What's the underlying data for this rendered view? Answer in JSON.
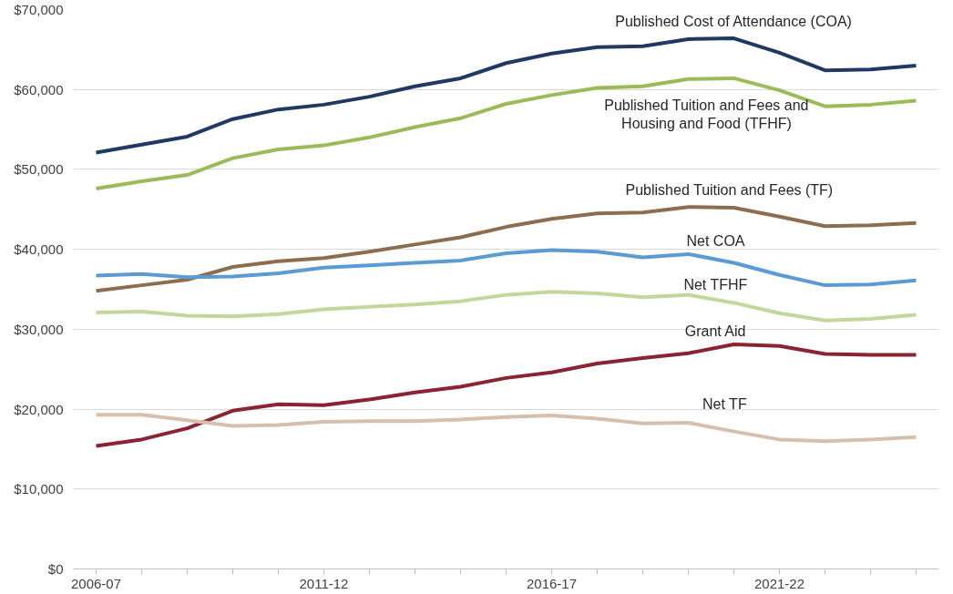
{
  "chart_data": {
    "type": "line",
    "categories": [
      "2006-07",
      null,
      null,
      null,
      null,
      "2011-12",
      null,
      null,
      null,
      null,
      "2016-17",
      null,
      null,
      null,
      null,
      "2021-22",
      null,
      null,
      null
    ],
    "ylim": [
      0,
      70000
    ],
    "yticks": [
      {
        "value": 0,
        "label": "$0"
      },
      {
        "value": 10000,
        "label": "$10,000"
      },
      {
        "value": 20000,
        "label": "$20,000"
      },
      {
        "value": 30000,
        "label": "$30,000"
      },
      {
        "value": 40000,
        "label": "$40,000"
      },
      {
        "value": 50000,
        "label": "$50,000"
      },
      {
        "value": 60000,
        "label": "$60,000"
      },
      {
        "value": 70000,
        "label": "$70,000"
      }
    ],
    "grid": "y",
    "legend": false,
    "marker": "none",
    "line_style": "solid",
    "series": [
      {
        "name": "Published Cost of Attendance (COA)",
        "color": "#1f3864",
        "values": [
          52100,
          53100,
          54100,
          56300,
          57500,
          58100,
          59100,
          60400,
          61400,
          63300,
          64500,
          65300,
          65400,
          66300,
          66400,
          64600,
          62400,
          62500,
          63000
        ]
      },
      {
        "name": "Published Tuition and Fees and Housing and Food (TFHF)",
        "color": "#9bbb59",
        "values": [
          47600,
          48500,
          49300,
          51400,
          52500,
          53000,
          54000,
          55300,
          56400,
          58200,
          59300,
          60200,
          60400,
          61300,
          61400,
          59900,
          57900,
          58100,
          58600
        ]
      },
      {
        "name": "Published Tuition and Fees (TF)",
        "color": "#8c6d4f",
        "values": [
          34800,
          35500,
          36200,
          37800,
          38500,
          38900,
          39700,
          40600,
          41500,
          42800,
          43800,
          44500,
          44600,
          45300,
          45200,
          44100,
          42900,
          43000,
          43300
        ]
      },
      {
        "name": "Net COA",
        "color": "#5b9bd5",
        "values": [
          36700,
          36900,
          36500,
          36600,
          37000,
          37700,
          38000,
          38300,
          38600,
          39500,
          39900,
          39700,
          39000,
          39400,
          38300,
          36800,
          35500,
          35600,
          36100
        ]
      },
      {
        "name": "Net TFHF",
        "color": "#c4d79b",
        "values": [
          32100,
          32200,
          31700,
          31600,
          31900,
          32500,
          32800,
          33100,
          33500,
          34300,
          34700,
          34500,
          34000,
          34300,
          33300,
          32000,
          31100,
          31300,
          31800
        ]
      },
      {
        "name": "Grant Aid",
        "color": "#8b2332",
        "values": [
          15400,
          16200,
          17600,
          19800,
          20600,
          20500,
          21200,
          22100,
          22800,
          23900,
          24600,
          25700,
          26400,
          27000,
          28100,
          27900,
          26900,
          26800,
          26800
        ]
      },
      {
        "name": "Net TF",
        "color": "#d5c0ad",
        "values": [
          19300,
          19300,
          18600,
          17900,
          18000,
          18400,
          18500,
          18500,
          18700,
          19000,
          19200,
          18800,
          18200,
          18300,
          17200,
          16200,
          16000,
          16200,
          16500
        ]
      }
    ]
  }
}
